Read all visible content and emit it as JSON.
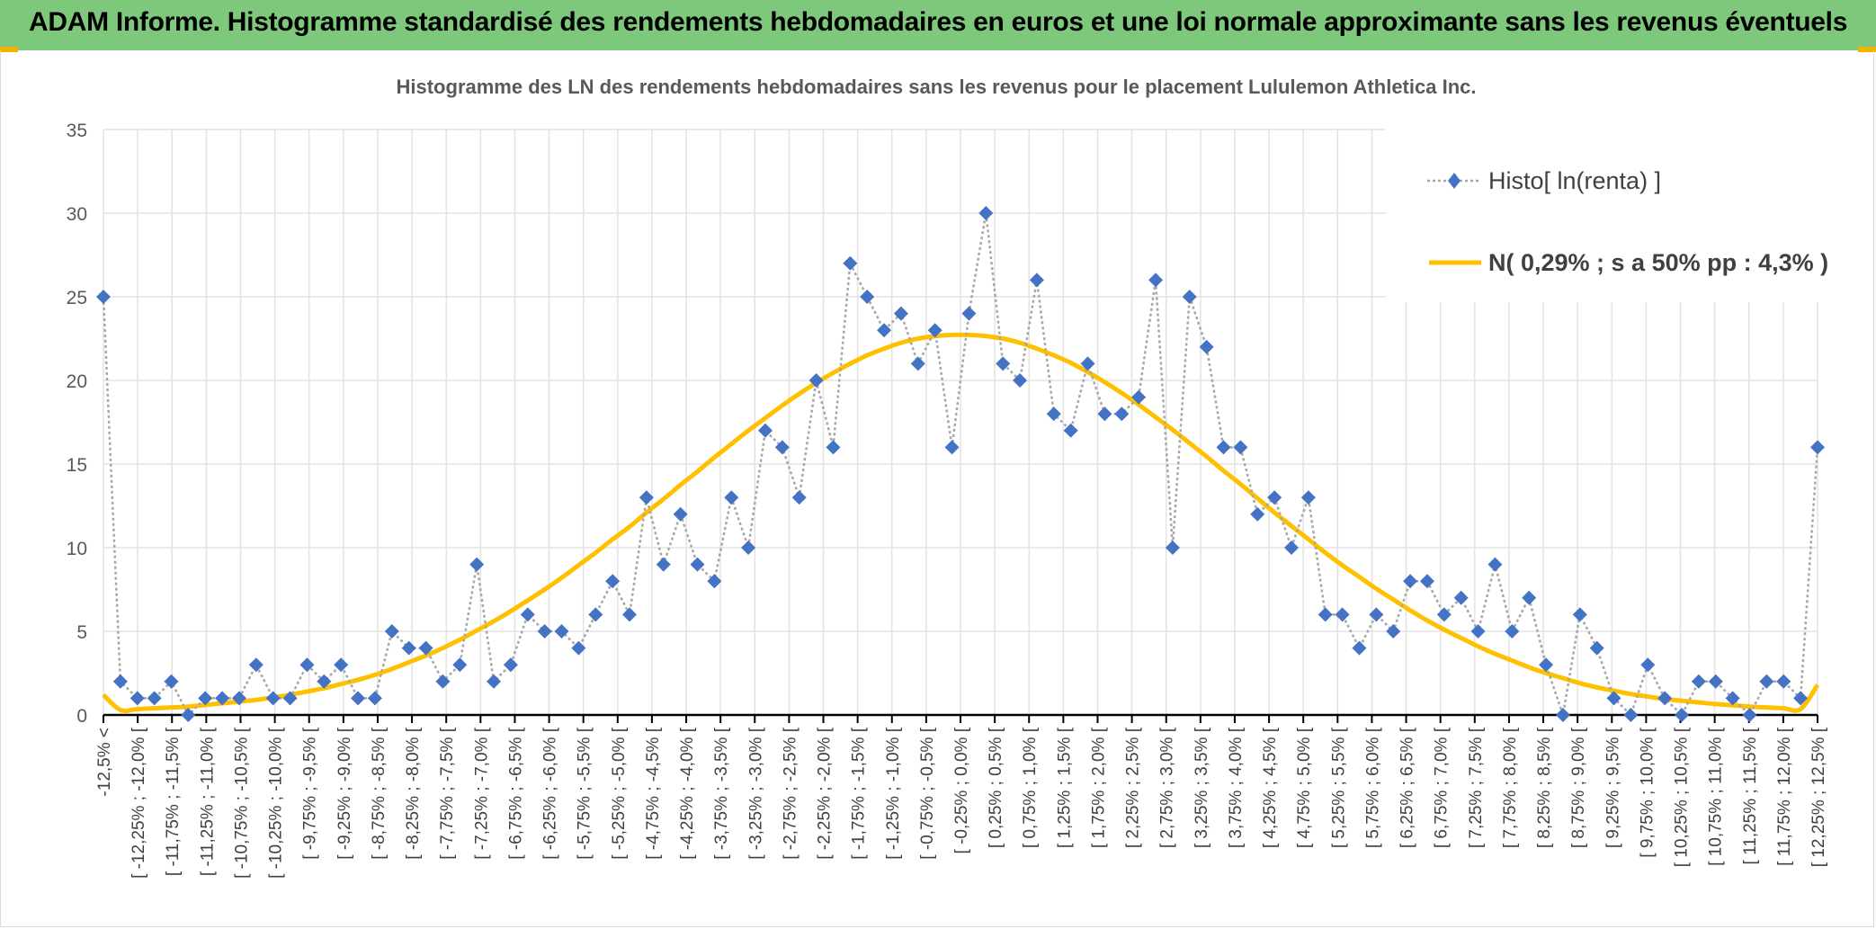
{
  "header": {
    "title": "ADAM Informe. Histogramme standardisé des rendements hebdomadaires en euros et une loi normale approximante sans les revenus éventuels",
    "background": "#7dc87a",
    "corner_color": "#f0b400"
  },
  "chart_data": {
    "type": "line",
    "title": "Histogramme des LN des rendements hebdomadaires sans les revenus pour le placement Lululemon Athletica Inc.",
    "xlabel": "",
    "ylabel": "",
    "ylim": [
      0,
      35
    ],
    "yticks": [
      0,
      5,
      10,
      15,
      20,
      25,
      30,
      35
    ],
    "grid": true,
    "legend_position": "top-right",
    "categories": [
      "-12,5% <",
      "[ -12,25% ; -12,0% [",
      "[ -11,75% ; -11,5% [",
      "[ -11,25% ; -11,0% [",
      "[ -10,75% ; -10,5% [",
      "[ -10,25% ; -10,0% [",
      "[ -9,75% ; -9,5% [",
      "[ -9,25% ; -9,0% [",
      "[ -8,75% ; -8,5% [",
      "[ -8,25% ; -8,0% [",
      "[ -7,75% ; -7,5% [",
      "[ -7,25% ; -7,0% [",
      "[ -6,75% ; -6,5% [",
      "[ -6,25% ; -6,0% [",
      "[ -5,75% ; -5,5% [",
      "[ -5,25% ; -5,0% [",
      "[ -4,75% ; -4,5% [",
      "[ -4,25% ; -4,0% [",
      "[ -3,75% ; -3,5% [",
      "[ -3,25% ; -3,0% [",
      "[ -2,75% ; -2,5% [",
      "[ -2,25% ; -2,0% [",
      "[ -1,75% ; -1,5% [",
      "[ -1,25% ; -1,0% [",
      "[ -0,75% ; -0,5% [",
      "[ -0,25% ; 0,0% [",
      "[ 0,25% ; 0,5% [",
      "[ 0,75% ; 1,0% [",
      "[ 1,25% ; 1,5% [",
      "[ 1,75% ; 2,0% [",
      "[ 2,25% ; 2,5% [",
      "[ 2,75% ; 3,0% [",
      "[ 3,25% ; 3,5% [",
      "[ 3,75% ; 4,0% [",
      "[ 4,25% ; 4,5% [",
      "[ 4,75% ; 5,0% [",
      "[ 5,25% ; 5,5% [",
      "[ 5,75% ; 6,0% [",
      "[ 6,25% ; 6,5% [",
      "[ 6,75% ; 7,0% [",
      "[ 7,25% ; 7,5% [",
      "[ 7,75% ; 8,0% [",
      "[ 8,25% ; 8,5% [",
      "[ 8,75% ; 9,0% [",
      "[ 9,25% ; 9,5% [",
      "[ 9,75% ; 10,0% [",
      "[ 10,25% ; 10,5% [",
      "[ 10,75% ; 11,0% [",
      "[ 11,25% ; 11,5% [",
      "[ 11,75% ; 12,0% [",
      "[ 12,25% ; 12,5% ["
    ],
    "x_range": [
      -12.5,
      12.75
    ],
    "series": [
      {
        "name": "Histo[ ln(renta) ]",
        "color": "#4472c4",
        "line_color": "#a6a6a6",
        "marker": "diamond",
        "style": "dotted",
        "x": [
          -12.5,
          -12.25,
          -12.0,
          -11.75,
          -11.5,
          -11.25,
          -11.0,
          -10.75,
          -10.5,
          -10.25,
          -10.0,
          -9.75,
          -9.5,
          -9.25,
          -9.0,
          -8.75,
          -8.5,
          -8.25,
          -8.0,
          -7.75,
          -7.5,
          -7.25,
          -7.0,
          -6.75,
          -6.5,
          -6.25,
          -6.0,
          -5.75,
          -5.5,
          -5.25,
          -5.0,
          -4.75,
          -4.5,
          -4.25,
          -4.0,
          -3.75,
          -3.5,
          -3.25,
          -3.0,
          -2.75,
          -2.5,
          -2.25,
          -2.0,
          -1.75,
          -1.5,
          -1.25,
          -1.0,
          -0.75,
          -0.5,
          -0.25,
          0.0,
          0.25,
          0.5,
          0.75,
          1.0,
          1.25,
          1.5,
          1.75,
          2.0,
          2.25,
          2.5,
          2.75,
          3.0,
          3.25,
          3.5,
          3.75,
          4.0,
          4.25,
          4.5,
          4.75,
          5.0,
          5.25,
          5.5,
          5.75,
          6.0,
          6.25,
          6.5,
          6.75,
          7.0,
          7.25,
          7.5,
          7.75,
          8.0,
          8.25,
          8.5,
          8.75,
          9.0,
          9.25,
          9.5,
          9.75,
          10.0,
          10.25,
          10.5,
          10.75,
          11.0,
          11.25,
          11.5,
          11.75,
          12.0,
          12.25,
          12.5,
          12.75
        ],
        "values": [
          25,
          2,
          1,
          1,
          2,
          0,
          1,
          1,
          1,
          3,
          1,
          1,
          3,
          2,
          3,
          1,
          1,
          5,
          4,
          4,
          2,
          3,
          9,
          2,
          3,
          6,
          5,
          5,
          4,
          6,
          8,
          6,
          13,
          9,
          12,
          9,
          8,
          13,
          10,
          17,
          16,
          13,
          20,
          16,
          27,
          25,
          23,
          24,
          21,
          23,
          16,
          24,
          30,
          21,
          20,
          26,
          18,
          17,
          21,
          18,
          18,
          19,
          26,
          10,
          25,
          22,
          16,
          16,
          12,
          13,
          10,
          13,
          6,
          6,
          4,
          6,
          5,
          8,
          8,
          6,
          7,
          5,
          9,
          5,
          7,
          3,
          0,
          6,
          4,
          1,
          0,
          3,
          1,
          0,
          2,
          2,
          1,
          0,
          2,
          2,
          1,
          16
        ]
      },
      {
        "name": "N( 0,29% ; s a 50% pp : 4,3% )",
        "color": "#ffc000",
        "style": "smooth",
        "x": [
          -12.5,
          -12.25,
          -12.0,
          -11.75,
          -11.5,
          -11.25,
          -11.0,
          -10.75,
          -10.5,
          -10.25,
          -10.0,
          -9.75,
          -9.5,
          -9.25,
          -9.0,
          -8.75,
          -8.5,
          -8.25,
          -8.0,
          -7.75,
          -7.5,
          -7.25,
          -7.0,
          -6.75,
          -6.5,
          -6.25,
          -6.0,
          -5.75,
          -5.5,
          -5.25,
          -5.0,
          -4.75,
          -4.5,
          -4.25,
          -4.0,
          -3.75,
          -3.5,
          -3.25,
          -3.0,
          -2.75,
          -2.5,
          -2.25,
          -2.0,
          -1.75,
          -1.5,
          -1.25,
          -1.0,
          -0.75,
          -0.5,
          -0.25,
          0.0,
          0.25,
          0.5,
          0.75,
          1.0,
          1.25,
          1.5,
          1.75,
          2.0,
          2.25,
          2.5,
          2.75,
          3.0,
          3.25,
          3.5,
          3.75,
          4.0,
          4.25,
          4.5,
          4.75,
          5.0,
          5.25,
          5.5,
          5.75,
          6.0,
          6.25,
          6.5,
          6.75,
          7.0,
          7.25,
          7.5,
          7.75,
          8.0,
          8.25,
          8.5,
          8.75,
          9.0,
          9.25,
          9.5,
          9.75,
          10.0,
          10.25,
          10.5,
          10.75,
          11.0,
          11.25,
          11.5,
          11.75,
          12.0,
          12.25,
          12.5,
          12.75
        ],
        "values": [
          1.2,
          0.3,
          0.35,
          0.4,
          0.45,
          0.5,
          0.6,
          0.7,
          0.8,
          0.9,
          1.05,
          1.2,
          1.4,
          1.6,
          1.85,
          2.1,
          2.4,
          2.75,
          3.15,
          3.55,
          4.0,
          4.5,
          5.05,
          5.6,
          6.2,
          6.85,
          7.5,
          8.2,
          8.95,
          9.7,
          10.5,
          11.25,
          12.1,
          12.9,
          13.75,
          14.55,
          15.4,
          16.2,
          17.0,
          17.75,
          18.5,
          19.2,
          19.85,
          20.45,
          21.0,
          21.5,
          21.9,
          22.25,
          22.5,
          22.65,
          22.72,
          22.72,
          22.65,
          22.5,
          22.25,
          21.9,
          21.5,
          21.05,
          20.5,
          19.9,
          19.25,
          18.55,
          17.8,
          17.05,
          16.25,
          15.45,
          14.6,
          13.8,
          12.95,
          12.1,
          11.3,
          10.5,
          9.7,
          8.95,
          8.25,
          7.55,
          6.9,
          6.25,
          5.65,
          5.1,
          4.6,
          4.1,
          3.65,
          3.25,
          2.85,
          2.5,
          2.2,
          1.9,
          1.65,
          1.45,
          1.25,
          1.1,
          0.95,
          0.85,
          0.75,
          0.65,
          0.58,
          0.5,
          0.45,
          0.4,
          0.35,
          1.8
        ]
      }
    ]
  }
}
